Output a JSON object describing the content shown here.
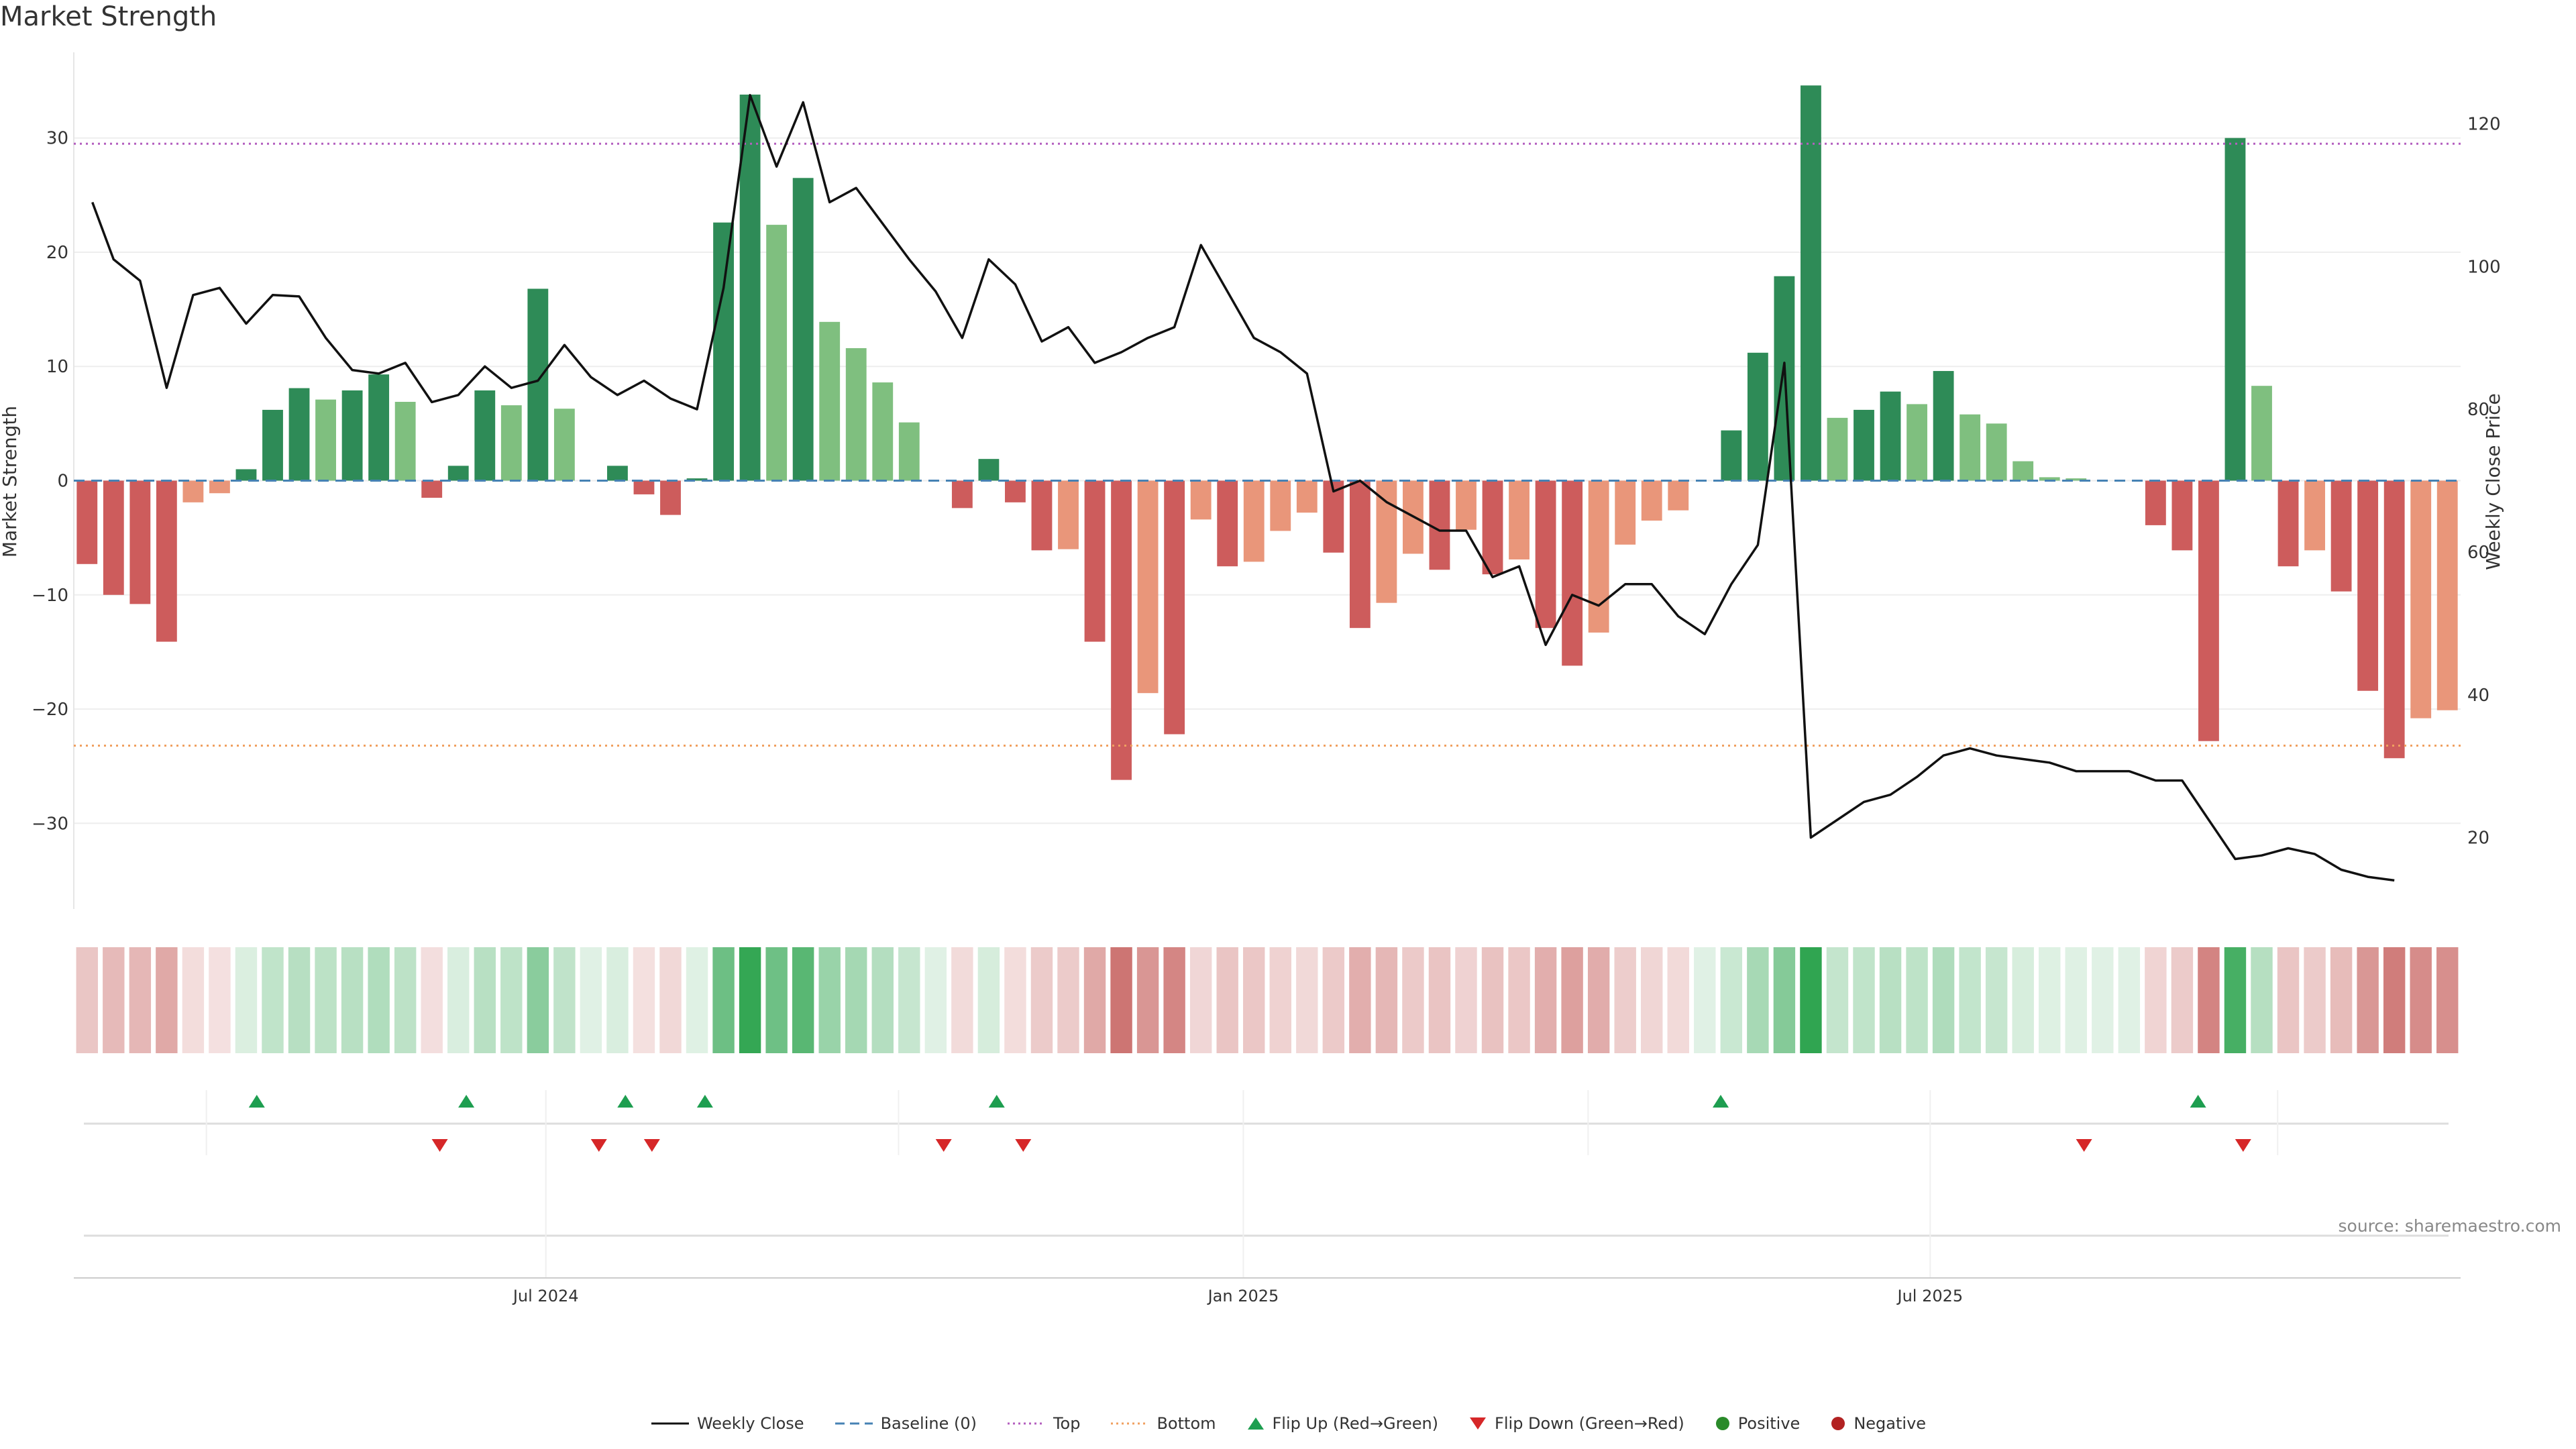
{
  "title": "Market Strength",
  "source": "source: sharemaestro.com",
  "colors": {
    "pos_strong": "#2e8b57",
    "pos_weak": "#7fbf7f",
    "neg_strong": "#cd5c5c",
    "neg_weak": "#e9967a",
    "line": "#111111",
    "baseline": "#4682b4",
    "top": "#b45fbf",
    "bottom": "#f0a060",
    "flip_up": "#1e9e50",
    "flip_down": "#d62728",
    "positive": "#2a8a2a",
    "negative": "#b22222"
  },
  "chart_data": {
    "type": "bar",
    "ylabel": "Market Strength",
    "y2label": "Weekly Close Price",
    "ylim": [
      -37.5,
      37.5
    ],
    "y2lim": [
      10,
      130
    ],
    "yticks": [
      -30,
      -20,
      -10,
      0,
      10,
      20,
      30
    ],
    "y2ticks": [
      20,
      40,
      60,
      80,
      100,
      120
    ],
    "top_level": 29.5,
    "bottom_level": -23.2,
    "x_tick_labels": [
      {
        "index": 17.3,
        "label": "Jul 2024"
      },
      {
        "index": 43.6,
        "label": "Jan 2025"
      },
      {
        "index": 69.5,
        "label": "Jul 2025"
      }
    ],
    "strength": [
      -7.3,
      -10.0,
      -10.8,
      -14.1,
      -1.9,
      -1.1,
      1.0,
      6.2,
      8.1,
      7.1,
      7.9,
      9.3,
      6.9,
      -1.5,
      1.3,
      7.9,
      6.6,
      16.8,
      6.3,
      0.0,
      1.3,
      -1.2,
      -3.0,
      0.2,
      22.6,
      33.8,
      22.4,
      26.5,
      13.9,
      11.6,
      8.6,
      5.1,
      0.0,
      -2.4,
      1.9,
      -1.9,
      -6.1,
      -6.0,
      -14.1,
      -26.2,
      -18.6,
      -22.2,
      -3.4,
      -7.5,
      -7.1,
      -4.4,
      -2.8,
      -6.3,
      -12.9,
      -10.7,
      -6.4,
      -7.8,
      -4.3,
      -8.2,
      -6.9,
      -12.9,
      -16.2,
      -13.3,
      -5.6,
      -3.5,
      -2.6,
      0.0,
      4.4,
      11.2,
      17.9,
      34.6,
      5.5,
      6.2,
      7.8,
      6.7,
      9.6,
      5.8,
      5.0,
      1.7,
      0.3,
      0.2,
      0.0,
      0.0,
      -3.9,
      -6.1,
      -22.8,
      30.0,
      8.3,
      -7.5,
      -6.1,
      -9.7,
      -18.4,
      -24.3,
      -20.8,
      -20.1
    ],
    "strength_tier": [
      "s",
      "s",
      "s",
      "s",
      "w",
      "w",
      "s",
      "s",
      "s",
      "w",
      "s",
      "s",
      "w",
      "s",
      "s",
      "s",
      "w",
      "s",
      "w",
      "s",
      "s",
      "s",
      "s",
      "s",
      "s",
      "s",
      "w",
      "s",
      "w",
      "w",
      "w",
      "w",
      "s",
      "s",
      "s",
      "s",
      "s",
      "w",
      "s",
      "s",
      "w",
      "s",
      "w",
      "s",
      "w",
      "w",
      "w",
      "s",
      "s",
      "w",
      "w",
      "s",
      "w",
      "s",
      "w",
      "s",
      "s",
      "w",
      "w",
      "w",
      "w",
      "s",
      "s",
      "s",
      "s",
      "s",
      "w",
      "s",
      "s",
      "w",
      "s",
      "w",
      "w",
      "w",
      "w",
      "w",
      "s",
      "s",
      "s",
      "s",
      "s",
      "s",
      "w",
      "s",
      "w",
      "s",
      "s",
      "s",
      "w",
      "w"
    ],
    "weekly_close": [
      {
        "i": 0.2,
        "v": 109
      },
      {
        "i": 1.0,
        "v": 101
      },
      {
        "i": 2.0,
        "v": 98
      },
      {
        "i": 3.0,
        "v": 83
      },
      {
        "i": 4.0,
        "v": 96
      },
      {
        "i": 5.0,
        "v": 97
      },
      {
        "i": 6.0,
        "v": 92
      },
      {
        "i": 7.0,
        "v": 96
      },
      {
        "i": 8.0,
        "v": 95.8
      },
      {
        "i": 9.0,
        "v": 90
      },
      {
        "i": 10.0,
        "v": 85.5
      },
      {
        "i": 11.0,
        "v": 85
      },
      {
        "i": 12.0,
        "v": 86.5
      },
      {
        "i": 13.0,
        "v": 81
      },
      {
        "i": 14.0,
        "v": 82
      },
      {
        "i": 15.0,
        "v": 86
      },
      {
        "i": 16.0,
        "v": 83
      },
      {
        "i": 17.0,
        "v": 84
      },
      {
        "i": 18.0,
        "v": 89
      },
      {
        "i": 19.0,
        "v": 84.5
      },
      {
        "i": 20.0,
        "v": 82
      },
      {
        "i": 21.0,
        "v": 84
      },
      {
        "i": 22.0,
        "v": 81.5
      },
      {
        "i": 23.0,
        "v": 80
      },
      {
        "i": 24.0,
        "v": 97
      },
      {
        "i": 25.0,
        "v": 124
      },
      {
        "i": 26.0,
        "v": 114
      },
      {
        "i": 27.0,
        "v": 123
      },
      {
        "i": 28.0,
        "v": 109
      },
      {
        "i": 29.0,
        "v": 111
      },
      {
        "i": 30.0,
        "v": 106
      },
      {
        "i": 31.0,
        "v": 101
      },
      {
        "i": 32.0,
        "v": 96.5
      },
      {
        "i": 33.0,
        "v": 90
      },
      {
        "i": 34.0,
        "v": 101
      },
      {
        "i": 35.0,
        "v": 97.5
      },
      {
        "i": 36.0,
        "v": 89.5
      },
      {
        "i": 37.0,
        "v": 91.5
      },
      {
        "i": 38.0,
        "v": 86.5
      },
      {
        "i": 39.0,
        "v": 88
      },
      {
        "i": 40.0,
        "v": 90
      },
      {
        "i": 41.0,
        "v": 91.5
      },
      {
        "i": 42.0,
        "v": 103
      },
      {
        "i": 43.0,
        "v": 96.5
      },
      {
        "i": 44.0,
        "v": 90
      },
      {
        "i": 45.0,
        "v": 88
      },
      {
        "i": 46.0,
        "v": 85
      },
      {
        "i": 47.0,
        "v": 68.5
      },
      {
        "i": 48.0,
        "v": 70
      },
      {
        "i": 49.0,
        "v": 67
      },
      {
        "i": 50.0,
        "v": 65
      },
      {
        "i": 51.0,
        "v": 63
      },
      {
        "i": 52.0,
        "v": 63
      },
      {
        "i": 53.0,
        "v": 56.5
      },
      {
        "i": 54.0,
        "v": 58
      },
      {
        "i": 55.0,
        "v": 47
      },
      {
        "i": 56.0,
        "v": 54
      },
      {
        "i": 57.0,
        "v": 52.5
      },
      {
        "i": 58.0,
        "v": 55.5
      },
      {
        "i": 59.0,
        "v": 55.5
      },
      {
        "i": 60.0,
        "v": 51
      },
      {
        "i": 61.0,
        "v": 48.5
      },
      {
        "i": 62.0,
        "v": 55.5
      },
      {
        "i": 63.0,
        "v": 61
      },
      {
        "i": 64.0,
        "v": 86.5
      },
      {
        "i": 65.0,
        "v": 20
      },
      {
        "i": 66.0,
        "v": 22.5
      },
      {
        "i": 67.0,
        "v": 25
      },
      {
        "i": 68.0,
        "v": 26
      },
      {
        "i": 69.0,
        "v": 28.5
      },
      {
        "i": 70.0,
        "v": 31.5
      },
      {
        "i": 71.0,
        "v": 32.5
      },
      {
        "i": 72.0,
        "v": 31.5
      },
      {
        "i": 73.0,
        "v": 31
      },
      {
        "i": 74.0,
        "v": 30.5
      },
      {
        "i": 75.0,
        "v": 29.3
      },
      {
        "i": 76.0,
        "v": 29.3
      },
      {
        "i": 77.0,
        "v": 29.3
      },
      {
        "i": 78.0,
        "v": 28
      },
      {
        "i": 79.0,
        "v": 28
      },
      {
        "i": 80.0,
        "v": 22.5
      },
      {
        "i": 81.0,
        "v": 17
      },
      {
        "i": 82.0,
        "v": 17.5
      },
      {
        "i": 83.0,
        "v": 18.5
      },
      {
        "i": 84.0,
        "v": 17.7
      },
      {
        "i": 85.0,
        "v": 15.5
      },
      {
        "i": 86.0,
        "v": 14.5
      },
      {
        "i": 87.0,
        "v": 14
      }
    ],
    "flip_up": [
      6.4,
      14.3,
      20.3,
      23.3,
      34.3,
      61.6,
      79.6
    ],
    "flip_down": [
      13.3,
      19.3,
      21.3,
      32.3,
      35.3,
      75.3,
      81.3
    ],
    "legend": [
      "Weekly Close",
      "Baseline (0)",
      "Top",
      "Bottom",
      "Flip Up (Red→Green)",
      "Flip Down (Green→Red)",
      "Positive",
      "Negative"
    ]
  }
}
